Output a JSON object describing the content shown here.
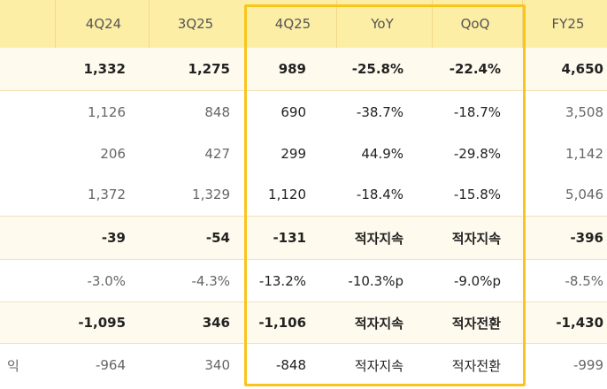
{
  "columns": [
    "4Q24",
    "3Q25",
    "4Q25",
    "YoY",
    "QoQ",
    "FY25"
  ],
  "rows": [
    {
      "label": "",
      "cells": [
        "1,332",
        "1,275",
        "989",
        "-25.8%",
        "-22.4%",
        "4,650"
      ]
    },
    {
      "label": "",
      "cells": [
        "1,126",
        "848",
        "690",
        "-38.7%",
        "-18.7%",
        "3,508"
      ]
    },
    {
      "label": "",
      "cells": [
        "206",
        "427",
        "299",
        "44.9%",
        "-29.8%",
        "1,142"
      ]
    },
    {
      "label": "",
      "cells": [
        "1,372",
        "1,329",
        "1,120",
        "-18.4%",
        "-15.8%",
        "5,046"
      ]
    },
    {
      "label": "",
      "cells": [
        "-39",
        "-54",
        "-131",
        "적자지속",
        "적자지속",
        "-396"
      ]
    },
    {
      "label": "",
      "cells": [
        "-3.0%",
        "-4.3%",
        "-13.2%",
        "-10.3%p",
        "-9.0%p",
        "-8.5%"
      ]
    },
    {
      "label": "",
      "cells": [
        "-1,095",
        "346",
        "-1,106",
        "적자지속",
        "적자전환",
        "-1,430"
      ]
    },
    {
      "label": "익",
      "cells": [
        "-964",
        "340",
        "-848",
        "적자지속",
        "적자전환",
        "-999"
      ]
    }
  ],
  "colors": {
    "header_bg": "#fdeea6",
    "highlight_row_bg": "#fffaee",
    "frame": "#f9c51c"
  }
}
